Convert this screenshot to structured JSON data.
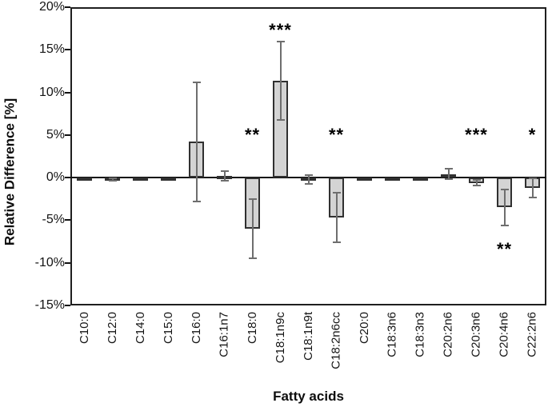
{
  "chart_data": {
    "type": "bar",
    "title": "",
    "xlabel": "Fatty acids",
    "ylabel": "Relative Difference [%]",
    "ylim": [
      -15,
      20
    ],
    "ytick_step": 5,
    "yticks": [
      {
        "value": 20,
        "label": "20%"
      },
      {
        "value": 15,
        "label": "15%"
      },
      {
        "value": 10,
        "label": "10%"
      },
      {
        "value": 5,
        "label": "5%"
      },
      {
        "value": 0,
        "label": "0%"
      },
      {
        "value": -5,
        "label": "-5%"
      },
      {
        "value": -10,
        "label": "-10%"
      },
      {
        "value": -15,
        "label": "-15%"
      }
    ],
    "categories": [
      "C10:0",
      "C12:0",
      "C14:0",
      "C15:0",
      "C16:0",
      "C16:1n7",
      "C18:0",
      "C18:1n9c",
      "C18:1n9t",
      "C18:2n6cc",
      "C20:0",
      "C18:3n6",
      "C18:3n3",
      "C20:2n6",
      "C20:3n6",
      "C20:4n6",
      "C22:2n6"
    ],
    "series": [
      {
        "name": "Relative Difference",
        "values": [
          -0.1,
          -0.2,
          -0.15,
          -0.1,
          4.2,
          0.2,
          -6.0,
          11.4,
          -0.2,
          -4.7,
          -0.1,
          -0.1,
          -0.1,
          0.4,
          -0.6,
          -3.5,
          -1.2
        ],
        "errors": [
          0,
          0.15,
          0,
          0,
          7.0,
          0.6,
          3.5,
          4.6,
          0.5,
          2.9,
          0,
          0,
          0,
          0.6,
          0.35,
          2.1,
          1.1
        ]
      }
    ],
    "annotations": [
      {
        "category": "C18:0",
        "text": "**",
        "y": 5.0
      },
      {
        "category": "C18:1n9c",
        "text": "***",
        "y": 17.3
      },
      {
        "category": "C18:2n6cc",
        "text": "**",
        "y": 5.0
      },
      {
        "category": "C20:3n6",
        "text": "***",
        "y": 5.0
      },
      {
        "category": "C20:4n6",
        "text": "**",
        "y": -8.4
      },
      {
        "category": "C22:2n6",
        "text": "*",
        "y": 5.0
      }
    ],
    "grid": false,
    "legend": false,
    "colors": {
      "bar_fill": "#d4d4d4",
      "bar_border": "#303030",
      "error_bar": "#6e6e6e",
      "axis": "#1f1f1f",
      "text": "#141414"
    }
  }
}
